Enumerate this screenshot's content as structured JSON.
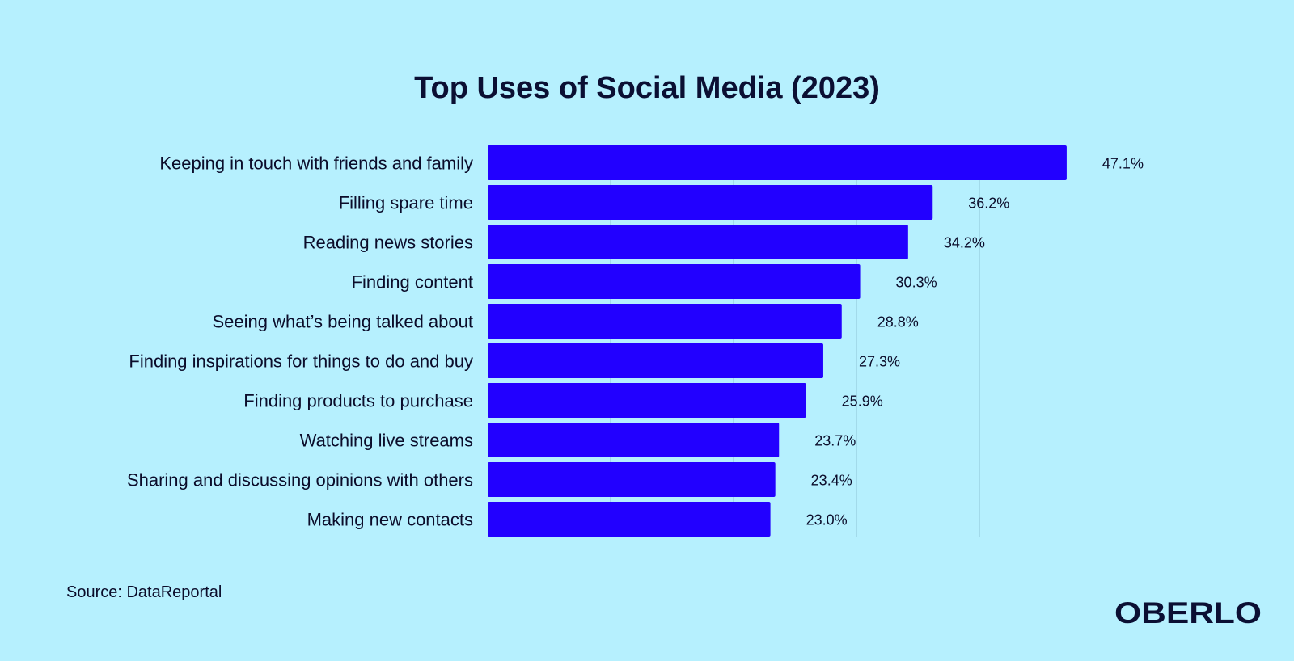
{
  "chart_data": {
    "type": "bar",
    "orientation": "horizontal",
    "title": "Top Uses of Social Media (2023)",
    "categories": [
      "Keeping in touch with friends and family",
      "Filling spare time",
      "Reading news stories",
      "Finding content",
      "Seeing what’s being talked about",
      "Finding inspirations for things to do and buy",
      "Finding products to purchase",
      "Watching live streams",
      "Sharing and discussing opinions with others",
      "Making new contacts"
    ],
    "values": [
      47.1,
      36.2,
      34.2,
      30.3,
      28.8,
      27.3,
      25.9,
      23.7,
      23.4,
      23.0
    ],
    "value_labels": [
      "47.1%",
      "36.2%",
      "34.2%",
      "30.3%",
      "28.8%",
      "27.3%",
      "25.9%",
      "23.7%",
      "23.4%",
      "23.0%"
    ],
    "xlim": [
      0,
      50
    ],
    "gridlines": [
      10,
      20,
      30,
      40
    ],
    "grid": true,
    "legend": "none",
    "bar_color": "#2200ff"
  },
  "source": "Source: DataReportal",
  "logo": "OBERLO",
  "colors": {
    "background": "#b6f0fe",
    "bar": "#2200ff",
    "text": "#0b0c2a"
  }
}
